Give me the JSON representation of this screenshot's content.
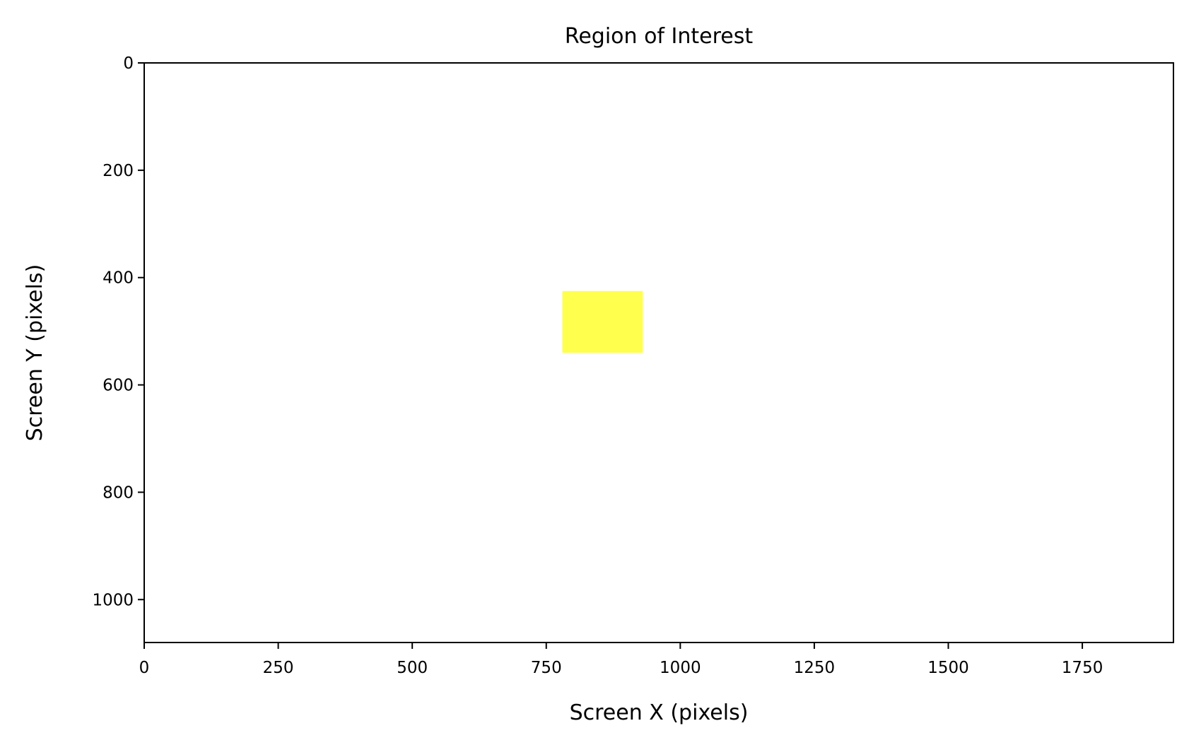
{
  "chart_data": {
    "type": "heatmap",
    "title": "Region of Interest",
    "xlabel": "Screen X (pixels)",
    "ylabel": "Screen Y (pixels)",
    "xlim": [
      0,
      1920
    ],
    "ylim": [
      1080,
      0
    ],
    "y_inverted": true,
    "x_ticks": [
      0,
      250,
      500,
      750,
      1000,
      1250,
      1500,
      1750
    ],
    "y_ticks": [
      0,
      200,
      400,
      600,
      800,
      1000
    ],
    "grid": false,
    "regions": [
      {
        "x0": 780,
        "x1": 930,
        "y0": 425,
        "y1": 540,
        "color": "#ffff4d"
      }
    ],
    "background_color": "#ffffff"
  }
}
